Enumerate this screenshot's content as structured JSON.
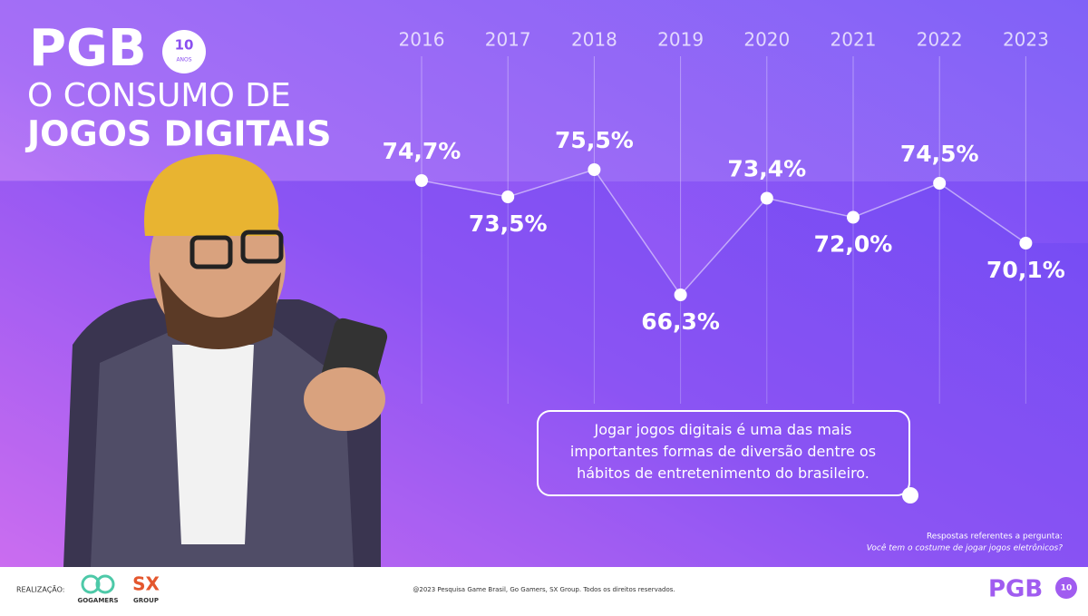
{
  "logo": {
    "name": "PGB",
    "badge": "10",
    "badge_sub": "ANOS"
  },
  "title": {
    "line1": "O CONSUMO DE",
    "line2": "JOGOS DIGITAIS"
  },
  "chart_data": {
    "type": "line",
    "categories": [
      "2016",
      "2017",
      "2018",
      "2019",
      "2020",
      "2021",
      "2022",
      "2023"
    ],
    "values": [
      74.7,
      73.5,
      75.5,
      66.3,
      73.4,
      72.0,
      74.5,
      70.1
    ],
    "value_labels": [
      "74,7%",
      "73,5%",
      "75,5%",
      "66,3%",
      "73,4%",
      "72,0%",
      "74,5%",
      "70,1%"
    ],
    "color": "#ffffff"
  },
  "callout": "Jogar jogos digitais é uma das mais importantes formas de diversão dentre os hábitos de entretenimento do brasileiro.",
  "note": {
    "line1": "Respostas referentes a pergunta:",
    "line2": "Você tem o costume de jogar jogos eletrônicos?"
  },
  "footer": {
    "label": "REALIZAÇÃO:",
    "partner1": "GOGAMERS",
    "partner2": "SX",
    "partner2_sub": "GROUP",
    "copyright": "@2023 Pesquisa Game Brasil, Go Gamers, SX Group. Todos os direitos reservados.",
    "logo": "PGB",
    "badge": "10"
  }
}
